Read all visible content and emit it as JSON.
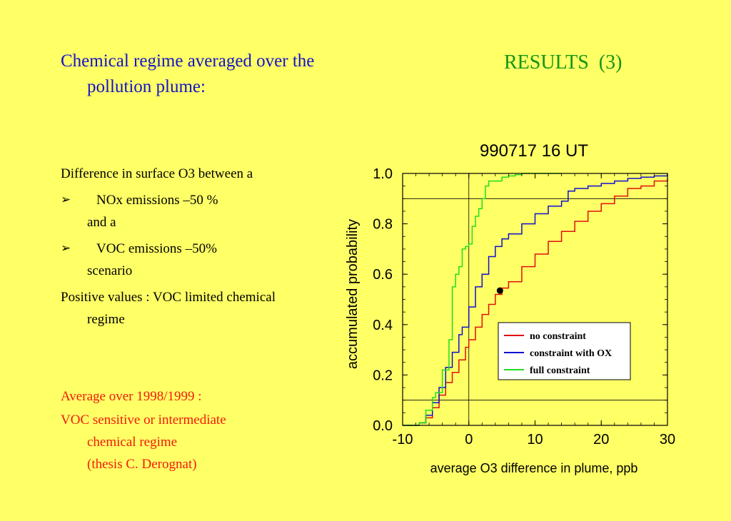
{
  "left": {
    "title": "Chemical regime averaged over the pollution plume:",
    "p1": "Difference in surface O3 between a",
    "bullet_marker": "➢",
    "b1_line1": "NOx emissions –50 %",
    "b1_line2": "and a",
    "b2_line1": "VOC emissions –50%",
    "b2_line2": "scenario",
    "p2": "Positive values : VOC limited chemical regime",
    "red1": "Average over 1998/1999 :",
    "red2_line1": "VOC sensitive or intermediate",
    "red2_line2": "chemical regime",
    "red2_line3": "(thesis C. Derognat)"
  },
  "header": {
    "results": "RESULTS  (3)"
  },
  "chart_data": {
    "type": "line",
    "title": "990717  16 UT",
    "xlabel": "average O3 difference in plume, ppb",
    "ylabel": "accumulated probability",
    "xlim": [
      -10,
      30
    ],
    "ylim": [
      0.0,
      1.0
    ],
    "xticks": [
      "-10",
      "0",
      "10",
      "20",
      "30"
    ],
    "yticks": [
      "0.0",
      "0.2",
      "0.4",
      "0.6",
      "0.8",
      "1.0"
    ],
    "grid": false,
    "reference_lines": {
      "x": [
        0
      ],
      "y": [
        0.1,
        0.9
      ]
    },
    "marker_point": {
      "x": 4.7,
      "y": 0.535
    },
    "legend_position": "bottom-right",
    "series": [
      {
        "name": "no constraint",
        "color": "#e01010",
        "x": [
          -10,
          -7.5,
          -6.5,
          -5.5,
          -4.5,
          -3.5,
          -2.5,
          -1.5,
          -0.5,
          0,
          1,
          2,
          3,
          4,
          5,
          6,
          8,
          10,
          12,
          14,
          16,
          18,
          20,
          22,
          24,
          26,
          28,
          30
        ],
        "y": [
          0.0,
          0.01,
          0.03,
          0.07,
          0.12,
          0.17,
          0.21,
          0.26,
          0.31,
          0.34,
          0.39,
          0.44,
          0.48,
          0.52,
          0.545,
          0.57,
          0.63,
          0.68,
          0.73,
          0.77,
          0.81,
          0.85,
          0.88,
          0.91,
          0.94,
          0.95,
          0.97,
          0.98
        ]
      },
      {
        "name": "constraint with OX",
        "color": "#1010d0",
        "x": [
          -10,
          -7.5,
          -6.5,
          -5.5,
          -4.5,
          -3.5,
          -2.5,
          -1.5,
          -1,
          0,
          1,
          2,
          3,
          4,
          5,
          6,
          8,
          10,
          12,
          14,
          15,
          16,
          18,
          20,
          22,
          24,
          26,
          28,
          30
        ],
        "y": [
          0.0,
          0.01,
          0.04,
          0.09,
          0.15,
          0.23,
          0.29,
          0.36,
          0.39,
          0.47,
          0.55,
          0.6,
          0.67,
          0.71,
          0.74,
          0.76,
          0.8,
          0.84,
          0.87,
          0.89,
          0.93,
          0.94,
          0.95,
          0.96,
          0.97,
          0.98,
          0.985,
          0.99,
          1.0
        ]
      },
      {
        "name": "full constraint",
        "color": "#22dd22",
        "x": [
          -10,
          -7.5,
          -6.5,
          -5.5,
          -5,
          -4,
          -3,
          -2.5,
          -2,
          -1.5,
          -1,
          -0.5,
          0,
          0.5,
          1,
          1.5,
          2,
          2.5,
          3,
          4,
          5,
          6,
          7,
          8,
          10,
          14
        ],
        "y": [
          0.0,
          0.01,
          0.06,
          0.11,
          0.13,
          0.22,
          0.34,
          0.55,
          0.6,
          0.63,
          0.7,
          0.71,
          0.72,
          0.79,
          0.83,
          0.86,
          0.9,
          0.95,
          0.97,
          0.97,
          0.985,
          0.99,
          0.995,
          1.0,
          1.0,
          1.0
        ]
      }
    ]
  }
}
